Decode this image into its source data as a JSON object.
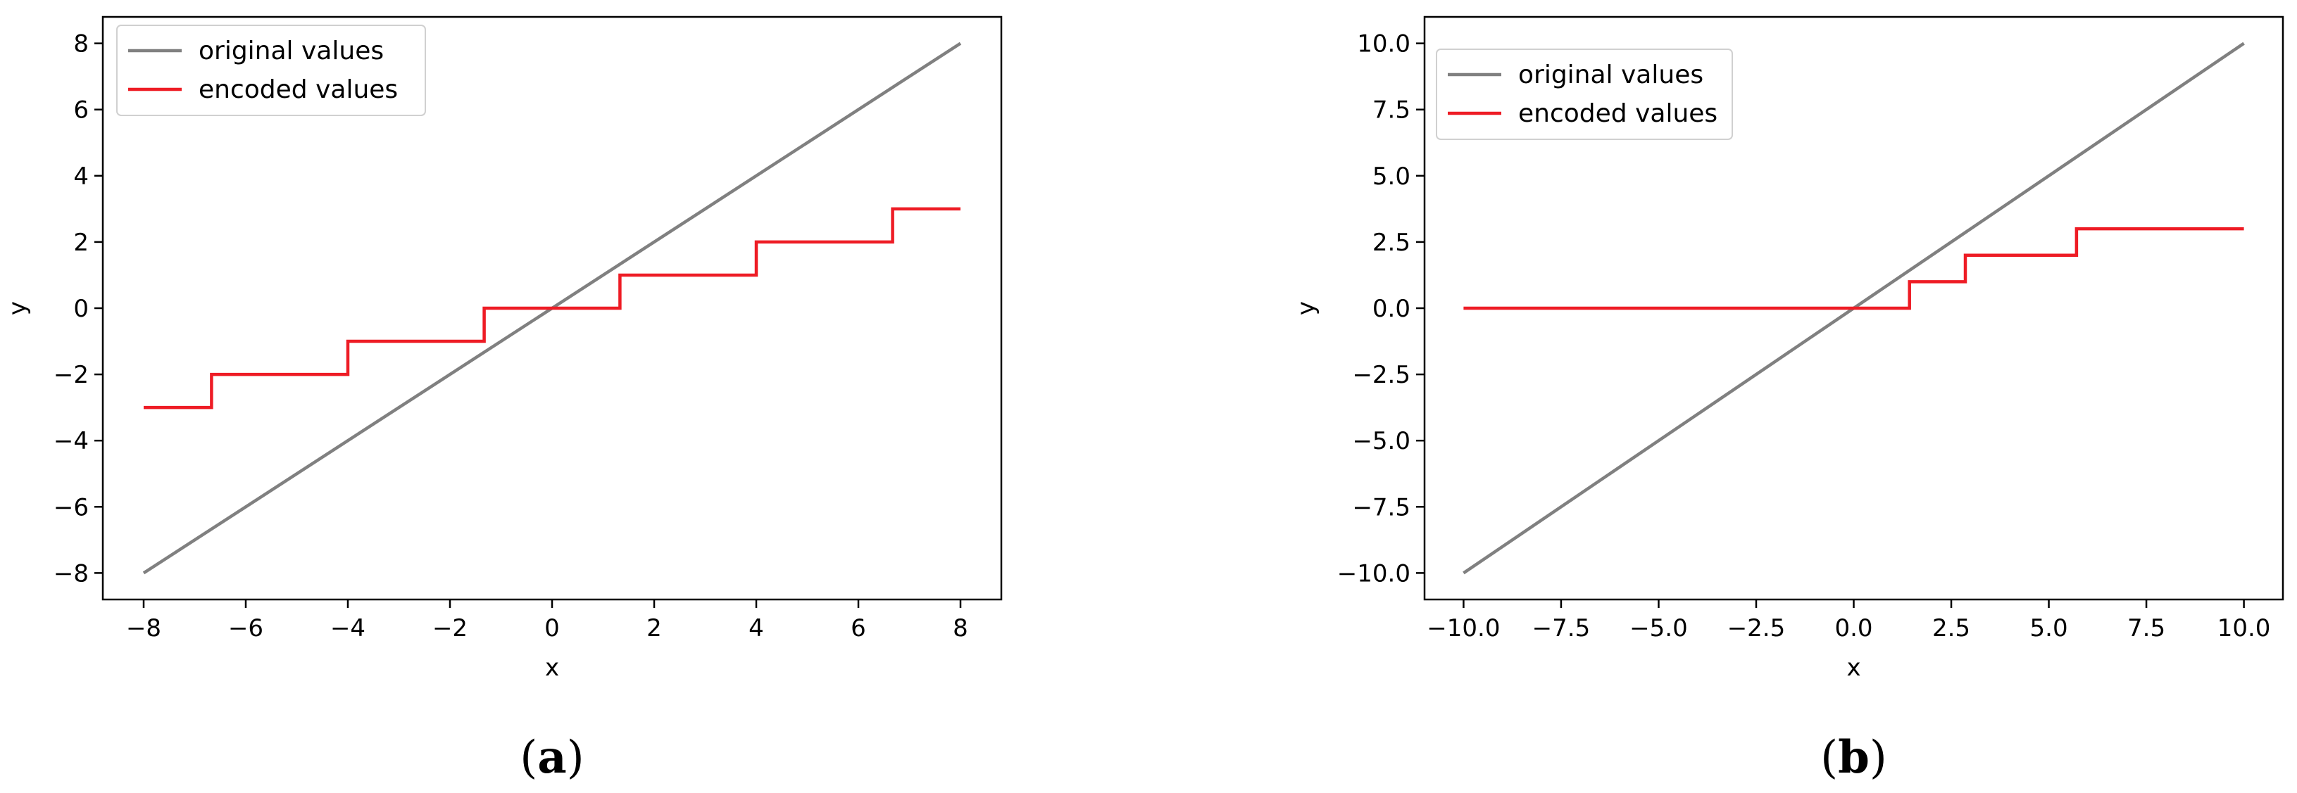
{
  "chart_data": [
    {
      "type": "line",
      "caption": "a",
      "xlabel": "x",
      "ylabel": "y",
      "xlim": [
        -8.8,
        8.8
      ],
      "ylim": [
        -8.8,
        8.8
      ],
      "xticks": [
        -8,
        -6,
        -4,
        -2,
        0,
        2,
        4,
        6,
        8
      ],
      "xtick_labels": [
        "−8",
        "−6",
        "−4",
        "−2",
        "0",
        "2",
        "4",
        "6",
        "8"
      ],
      "yticks": [
        -8,
        -6,
        -4,
        -2,
        0,
        2,
        4,
        6,
        8
      ],
      "ytick_labels": [
        "−8",
        "−6",
        "−4",
        "−2",
        "0",
        "2",
        "4",
        "6",
        "8"
      ],
      "grid": false,
      "legend": "top-left",
      "series": [
        {
          "name": "original values",
          "color": "#808080",
          "x": [
            -8,
            8
          ],
          "y": [
            -8,
            8
          ]
        },
        {
          "name": "encoded values",
          "color": "#ee1c25",
          "x": [
            -8,
            -6.67,
            -6.67,
            -4,
            -4,
            -1.33,
            -1.33,
            1.33,
            1.33,
            4,
            4,
            6.67,
            6.67,
            8
          ],
          "y": [
            -3,
            -3,
            -2,
            -2,
            -1,
            -1,
            0,
            0,
            1,
            1,
            2,
            2,
            3,
            3
          ]
        }
      ]
    },
    {
      "type": "line",
      "caption": "b",
      "xlabel": "x",
      "ylabel": "y",
      "xlim": [
        -11,
        11
      ],
      "ylim": [
        -11,
        11
      ],
      "xticks": [
        -10,
        -7.5,
        -5,
        -2.5,
        0,
        2.5,
        5,
        7.5,
        10
      ],
      "xtick_labels": [
        "−10.0",
        "−7.5",
        "−5.0",
        "−2.5",
        "0.0",
        "2.5",
        "5.0",
        "7.5",
        "10.0"
      ],
      "yticks": [
        -10,
        -7.5,
        -5,
        -2.5,
        0,
        2.5,
        5,
        7.5,
        10
      ],
      "ytick_labels": [
        "−10.0",
        "−7.5",
        "−5.0",
        "−2.5",
        "0.0",
        "2.5",
        "5.0",
        "7.5",
        "10.0"
      ],
      "grid": false,
      "legend": "top-left",
      "series": [
        {
          "name": "original values",
          "color": "#808080",
          "x": [
            -10,
            10
          ],
          "y": [
            -10,
            10
          ]
        },
        {
          "name": "encoded values",
          "color": "#ee1c25",
          "x": [
            -10,
            1.43,
            1.43,
            2.86,
            2.86,
            5.71,
            5.71,
            10
          ],
          "y": [
            0,
            0,
            1,
            1,
            2,
            2,
            3,
            3
          ]
        }
      ]
    }
  ]
}
